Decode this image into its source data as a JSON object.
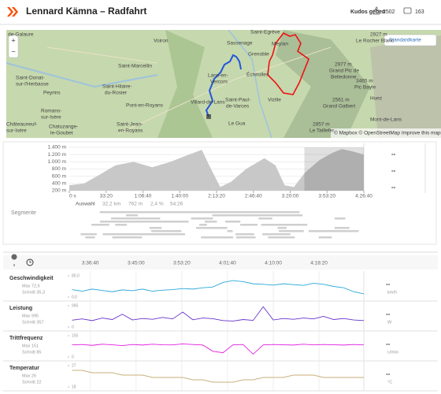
{
  "header": {
    "title": "Lennard Kämna – Radfahrt",
    "kudos_button": "Kudos geben",
    "kudos_count": 2502,
    "comment_count": 163
  },
  "map": {
    "zoom_in": "+",
    "zoom_out": "−",
    "style_button": "Standardkarte",
    "attribution": "© Mapbox © OpenStreetMap Improve this map",
    "labels": [
      "de-Galaure",
      "Voiron",
      "Saint-Egrève",
      "Meylan",
      "2927 m",
      "Le Rocher Blanc",
      "Sassenage",
      "Grenoble",
      "2977 m",
      "Grand Pic de",
      "Belledonne",
      "Saint-Marcellin",
      "Saint-Donat-",
      "sur-l'Herbasse",
      "Saint-Hilaire-",
      "du-Rosier",
      "Lans-en-",
      "Vercors",
      "Échirolles",
      "3465 m",
      "Pic Bayle",
      "Peyrins",
      "Romans-",
      "sur-Isère",
      "Pont-en-Royans",
      "Villard-de-Lans",
      "Saint-Paul-",
      "de-Varces",
      "Vizille",
      "2561 m",
      "Grand Galbert",
      "Huez",
      "Châteauneuf-",
      "sur-Isère",
      "Chatuzange-",
      "le-Goubet",
      "Saint-Jean-",
      "en-Royans",
      "Le Gua",
      "2857 m",
      "Le Taillefer",
      "Mont-de-Lans"
    ]
  },
  "chart_data": [
    {
      "type": "area",
      "color": "#c8c8c8",
      "x": [
        0,
        800,
        1500,
        2500,
        3500,
        4500,
        5500,
        6500,
        7200,
        7600,
        8200,
        8800,
        9600,
        10600,
        11200,
        11700,
        12200,
        12800,
        13600,
        14300,
        14800,
        15300,
        16000
      ],
      "values": [
        350,
        400,
        600,
        900,
        1000,
        850,
        1000,
        1200,
        1330,
        900,
        300,
        450,
        800,
        1100,
        900,
        350,
        300,
        700,
        1050,
        1250,
        1350,
        1300,
        1200
      ],
      "xlim": [
        0,
        16000
      ],
      "ylim": [
        200,
        1400
      ],
      "selection": [
        12770,
        16000
      ],
      "xticks": [
        {
          "value": 0,
          "label": "0 s"
        },
        {
          "value": 2000,
          "label": "33:20"
        },
        {
          "value": 4000,
          "label": "1:06:40"
        },
        {
          "value": 6000,
          "label": "1:40:00"
        },
        {
          "value": 8000,
          "label": "2:13:20"
        },
        {
          "value": 10000,
          "label": "2:46:40"
        },
        {
          "value": 12000,
          "label": "3:20:00"
        },
        {
          "value": 14000,
          "label": "3:53:20"
        },
        {
          "value": 16000,
          "label": "4:26:40"
        }
      ],
      "yticks": [
        {
          "value": 1400,
          "label": "1.400 m"
        },
        {
          "value": 1200,
          "label": "1.200 m"
        },
        {
          "value": 1000,
          "label": "1.000 m"
        },
        {
          "value": 800,
          "label": "800 m"
        },
        {
          "value": 600,
          "label": "600 m"
        },
        {
          "value": 400,
          "label": "400 m"
        },
        {
          "value": 200,
          "label": "200 m"
        }
      ],
      "readouts": [
        "--",
        "--",
        "--"
      ]
    },
    {
      "type": "line",
      "xlim": [
        12770,
        15990
      ],
      "xticks": [
        {
          "value": 13000,
          "label": "3:36:40"
        },
        {
          "value": 13500,
          "label": "3:45:00"
        },
        {
          "value": 14000,
          "label": "3:53:20"
        },
        {
          "value": 14500,
          "label": "4:01:40"
        },
        {
          "value": 15000,
          "label": "4:10:00"
        },
        {
          "value": 15500,
          "label": "4:18:20"
        }
      ],
      "x": [
        12800,
        12910,
        13020,
        13130,
        13240,
        13350,
        13460,
        13570,
        13680,
        13790,
        13900,
        14010,
        14120,
        14230,
        14340,
        14450,
        14560,
        14670,
        14780,
        14890,
        15000,
        15110,
        15220,
        15330,
        15440,
        15550,
        15660,
        15770,
        15880,
        15990
      ],
      "panels": [
        {
          "name": "Geschwindigkeit",
          "max": "Max 72,6",
          "avg": "Schnitt 35,3",
          "current": "--",
          "unit": "km/h",
          "color": "#2aa8d8",
          "ylim": [
            0,
            80
          ],
          "yticks": [
            {
              "value": 80,
              "label": "80,0"
            },
            {
              "value": 0,
              "label": "0,0"
            }
          ],
          "values": [
            28,
            22,
            30,
            25,
            20,
            27,
            24,
            30,
            22,
            26,
            28,
            32,
            30,
            35,
            38,
            55,
            62,
            58,
            50,
            48,
            45,
            50,
            47,
            44,
            52,
            48,
            40,
            35,
            20,
            12
          ]
        },
        {
          "name": "Leistung",
          "max": "Max 995",
          "avg": "Schnitt 357",
          "current": "--",
          "unit": "W",
          "color": "#6633cc",
          "ylim": [
            0,
            995
          ],
          "yticks": [
            995,
            0
          ],
          "values": [
            320,
            380,
            300,
            420,
            350,
            600,
            330,
            400,
            360,
            450,
            380,
            700,
            340,
            420,
            390,
            300,
            280,
            350,
            310,
            950,
            330,
            400,
            360,
            420,
            380,
            500,
            350,
            400,
            330,
            300
          ]
        },
        {
          "name": "Trittfrequenz",
          "max": "Max 151",
          "avg": "Schnitt 85",
          "current": "--",
          "unit": "U/min",
          "color": "#e020e0",
          "ylim": [
            0,
            150
          ],
          "yticks": [
            150,
            0
          ],
          "values": [
            85,
            88,
            82,
            90,
            86,
            80,
            88,
            84,
            90,
            86,
            85,
            92,
            88,
            84,
            40,
            30,
            86,
            88,
            20,
            85,
            88,
            86,
            84,
            90,
            85,
            88,
            86,
            84,
            88,
            85
          ]
        },
        {
          "name": "Temperatur",
          "max": "Max 26",
          "avg": "Schnitt 22",
          "current": "--",
          "unit": "°C",
          "color": "#c8b07a",
          "ylim": [
            18,
            27
          ],
          "yticks": [
            27,
            18
          ],
          "values": [
            25,
            25,
            24,
            24,
            24,
            23,
            23,
            23,
            22,
            22,
            22,
            22,
            21,
            21,
            20,
            20,
            20,
            21,
            21,
            22,
            22,
            22,
            23,
            23,
            23,
            22,
            22,
            22,
            22,
            22
          ]
        }
      ]
    }
  ],
  "selection": {
    "label": "Auswahl",
    "distance": "32,2 km",
    "elevation": "762 m",
    "grade": "2,4 %",
    "time": "54:26"
  },
  "segments_label": "Segmente"
}
